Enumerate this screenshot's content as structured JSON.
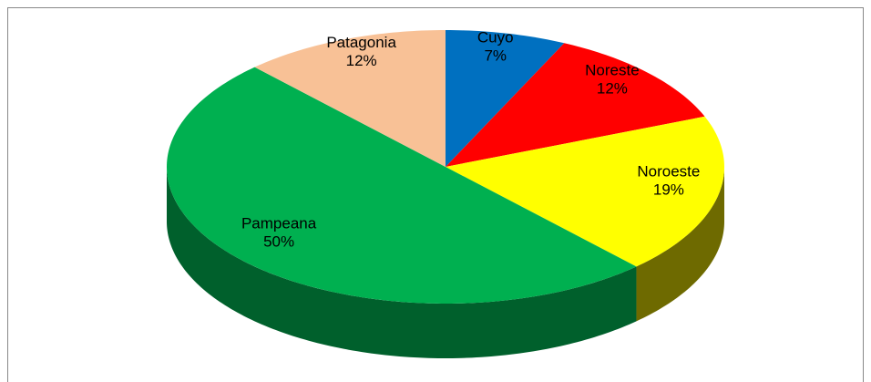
{
  "chart_data": {
    "type": "pie",
    "categories": [
      "Cuyo",
      "Noreste",
      "Noroeste",
      "Pampeana",
      "Patagonia"
    ],
    "values": [
      7,
      12,
      19,
      50,
      12
    ],
    "value_labels": [
      "7%",
      "12%",
      "19%",
      "50%",
      "12%"
    ],
    "colors": [
      "#0070c0",
      "#ff0000",
      "#ffff00",
      "#00b050",
      "#f8c196"
    ],
    "side_colors": [
      "#00407a",
      "#990000",
      "#6e6a00",
      "#00602c",
      "#a07050"
    ]
  }
}
